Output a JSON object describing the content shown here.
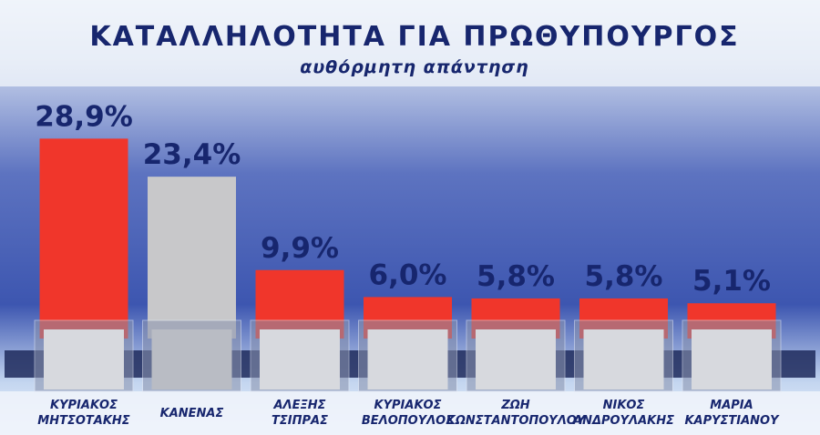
{
  "chart_data": {
    "type": "bar",
    "title": "ΚΑΤΑΛΛΗΛΟΤΗΤΑ ΓΙΑ ΠΡΩΘΥΠΟΥΡΓΟΣ",
    "subtitle": "αυθόρμητη απάντηση",
    "categories": [
      "ΚΥΡΙΑΚΟΣ ΜΗΤΣΟΤΑΚΗΣ",
      "ΚΑΝΕΝΑΣ",
      "ΑΛΕΞΗΣ ΤΣΙΠΡΑΣ",
      "ΚΥΡΙΑΚΟΣ ΒΕΛΟΠΟΥΛΟΣ",
      "ΖΩΗ ΚΩΝΣΤΑΝΤΟΠΟΥΛΟΥ",
      "ΝΙΚΟΣ ΑΝΔΡΟΥΛΑΚΗΣ",
      "ΜΑΡΙΑ ΚΑΡΥΣΤΙΑΝΟΥ"
    ],
    "values": [
      28.9,
      23.4,
      9.9,
      6.0,
      5.8,
      5.8,
      5.1
    ],
    "value_labels": [
      "28,9%",
      "23,4%",
      "9,9%",
      "6,0%",
      "5,8%",
      "5,8%",
      "5,1%"
    ],
    "colors": [
      "#f0362b",
      "#c8c8ca",
      "#f0362b",
      "#f0362b",
      "#f0362b",
      "#f0362b",
      "#f0362b"
    ]
  }
}
